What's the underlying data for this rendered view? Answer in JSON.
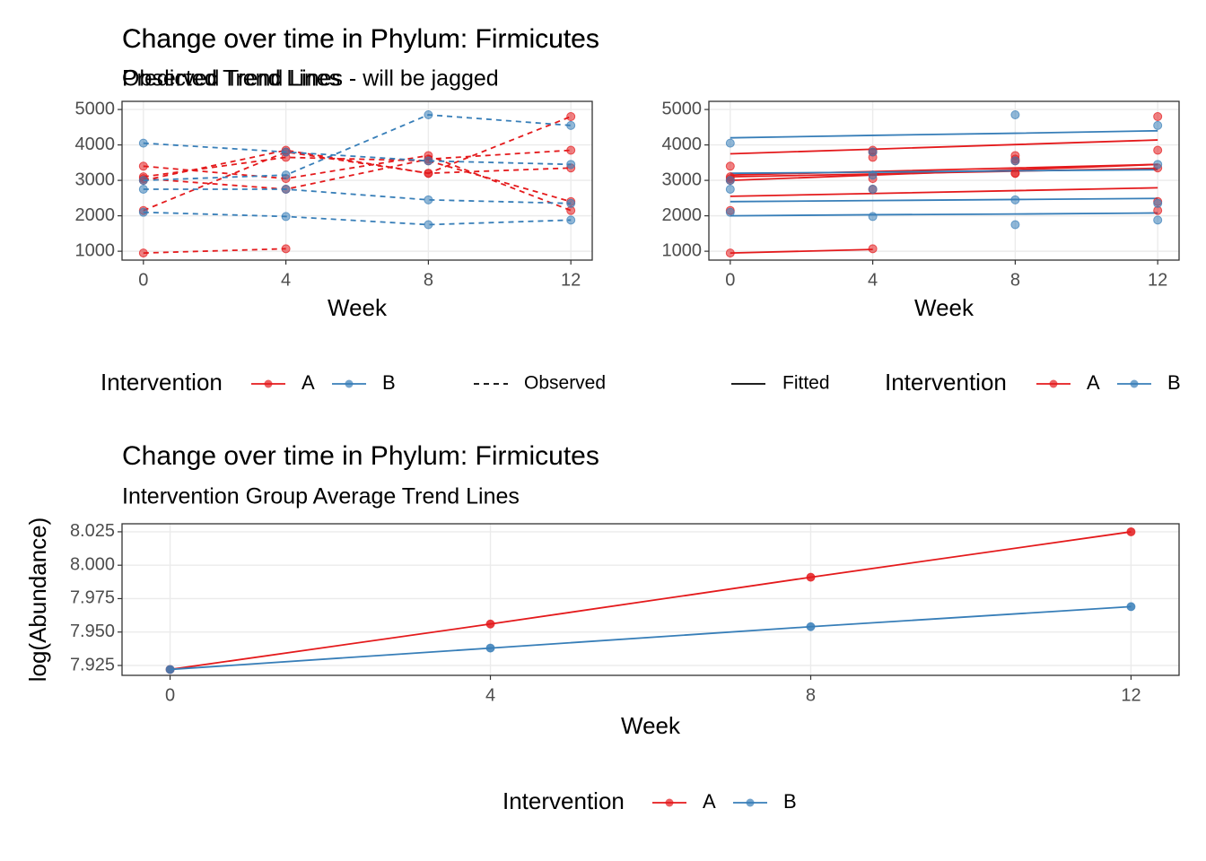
{
  "chart_data": [
    {
      "type": "line",
      "title": "Change over time in Phylum: Firmicutes",
      "subtitle": "Observed Trend Lines - will be jagged",
      "x_label": "Week",
      "x": [
        0,
        4,
        8,
        12
      ],
      "xlim": [
        -0.6,
        12.6
      ],
      "xticks": [
        0,
        4,
        8,
        12
      ],
      "ylim": [
        750,
        5230
      ],
      "yticks": [
        1000,
        2000,
        3000,
        4000,
        5000
      ],
      "grid": true,
      "line_style": "dashed",
      "points": true,
      "series": [
        {
          "color": "#e41a1c",
          "values": [
            950,
            1070,
            null,
            null
          ]
        },
        {
          "color": "#e41a1c",
          "values": [
            2150,
            3800,
            3200,
            4800
          ]
        },
        {
          "color": "#e41a1c",
          "values": [
            3050,
            2750,
            3600,
            3850
          ]
        },
        {
          "color": "#e41a1c",
          "values": [
            3100,
            3650,
            3550,
            2400
          ]
        },
        {
          "color": "#e41a1c",
          "values": [
            3400,
            3050,
            3700,
            2150
          ]
        },
        {
          "color": "#e41a1c",
          "values": [
            3000,
            3850,
            3200,
            3350
          ]
        },
        {
          "color": "#377eb8",
          "values": [
            4050,
            3800,
            3550,
            3450
          ]
        },
        {
          "color": "#377eb8",
          "values": [
            2100,
            1980,
            1750,
            1880
          ]
        },
        {
          "color": "#377eb8",
          "values": [
            2750,
            2750,
            2450,
            2350
          ]
        },
        {
          "color": "#377eb8",
          "values": [
            3000,
            3150,
            4850,
            4550
          ]
        }
      ],
      "legend": {
        "title": "Intervention",
        "groups": [
          {
            "name": "A",
            "color": "#e41a1c"
          },
          {
            "name": "B",
            "color": "#377eb8"
          }
        ],
        "line": {
          "name": "Observed",
          "style": "dashed"
        }
      }
    },
    {
      "type": "line",
      "title": "Change over time in Phylum: Firmicutes",
      "subtitle": "Predicted Trend Lines",
      "x_label": "Week",
      "x": [
        0,
        4,
        8,
        12
      ],
      "xlim": [
        -0.6,
        12.6
      ],
      "xticks": [
        0,
        4,
        8,
        12
      ],
      "ylim": [
        750,
        5230
      ],
      "yticks": [
        1000,
        2000,
        3000,
        4000,
        5000
      ],
      "grid": true,
      "line_style": null,
      "points": true,
      "series": [
        {
          "color": "#e41a1c",
          "values": [
            950,
            1070,
            null,
            null
          ]
        },
        {
          "color": "#e41a1c",
          "values": [
            2150,
            3800,
            3200,
            4800
          ]
        },
        {
          "color": "#e41a1c",
          "values": [
            3050,
            2750,
            3600,
            3850
          ]
        },
        {
          "color": "#e41a1c",
          "values": [
            3100,
            3650,
            3550,
            2400
          ]
        },
        {
          "color": "#e41a1c",
          "values": [
            3400,
            3050,
            3700,
            2150
          ]
        },
        {
          "color": "#e41a1c",
          "values": [
            3000,
            3850,
            3200,
            3350
          ]
        },
        {
          "color": "#377eb8",
          "values": [
            4050,
            3800,
            3550,
            3450
          ]
        },
        {
          "color": "#377eb8",
          "values": [
            2100,
            1980,
            1750,
            1880
          ]
        },
        {
          "color": "#377eb8",
          "values": [
            2750,
            2750,
            2450,
            2350
          ]
        },
        {
          "color": "#377eb8",
          "values": [
            3000,
            3150,
            4850,
            4550
          ]
        }
      ],
      "fitted": [
        {
          "color": "#e41a1c",
          "values": [
            950,
            1050,
            null,
            null
          ]
        },
        {
          "color": "#e41a1c",
          "values": [
            3750,
            3880,
            4010,
            4140
          ]
        },
        {
          "color": "#e41a1c",
          "values": [
            3000,
            3150,
            3300,
            3450
          ]
        },
        {
          "color": "#e41a1c",
          "values": [
            3100,
            3180,
            3260,
            3340
          ]
        },
        {
          "color": "#e41a1c",
          "values": [
            2550,
            2630,
            2710,
            2790
          ]
        },
        {
          "color": "#e41a1c",
          "values": [
            3150,
            3250,
            3350,
            3450
          ]
        },
        {
          "color": "#377eb8",
          "values": [
            3200,
            3230,
            3270,
            3300
          ]
        },
        {
          "color": "#377eb8",
          "values": [
            2000,
            2030,
            2050,
            2080
          ]
        },
        {
          "color": "#377eb8",
          "values": [
            2400,
            2430,
            2460,
            2490
          ]
        },
        {
          "color": "#377eb8",
          "values": [
            4200,
            4270,
            4330,
            4400
          ]
        }
      ],
      "legend": {
        "title": "Intervention",
        "groups": [
          {
            "name": "A",
            "color": "#e41a1c"
          },
          {
            "name": "B",
            "color": "#377eb8"
          }
        ],
        "line": {
          "name": "Fitted",
          "style": "solid"
        }
      }
    },
    {
      "type": "line",
      "title": "Change over time in Phylum: Firmicutes",
      "subtitle": "Intervention Group Average Trend Lines",
      "x_label": "Week",
      "y_label": "log(Abundance)",
      "x": [
        0,
        4,
        8,
        12
      ],
      "xlim": [
        -0.6,
        12.6
      ],
      "xticks": [
        0,
        4,
        8,
        12
      ],
      "ylim": [
        7.9176,
        8.031
      ],
      "yticks": [
        7.925,
        {
          "value": 7.95,
          "label": "7.950"
        },
        7.975,
        {
          "value": 8,
          "label": "8.000"
        },
        8.025
      ],
      "grid": true,
      "line_style": "solid",
      "points": true,
      "series": [
        {
          "name": "A",
          "color": "#e41a1c",
          "values": [
            7.922,
            7.956,
            7.991,
            8.025
          ]
        },
        {
          "name": "B",
          "color": "#377eb8",
          "values": [
            7.922,
            7.938,
            7.954,
            7.969
          ]
        }
      ],
      "legend": {
        "title": "Intervention"
      }
    }
  ]
}
